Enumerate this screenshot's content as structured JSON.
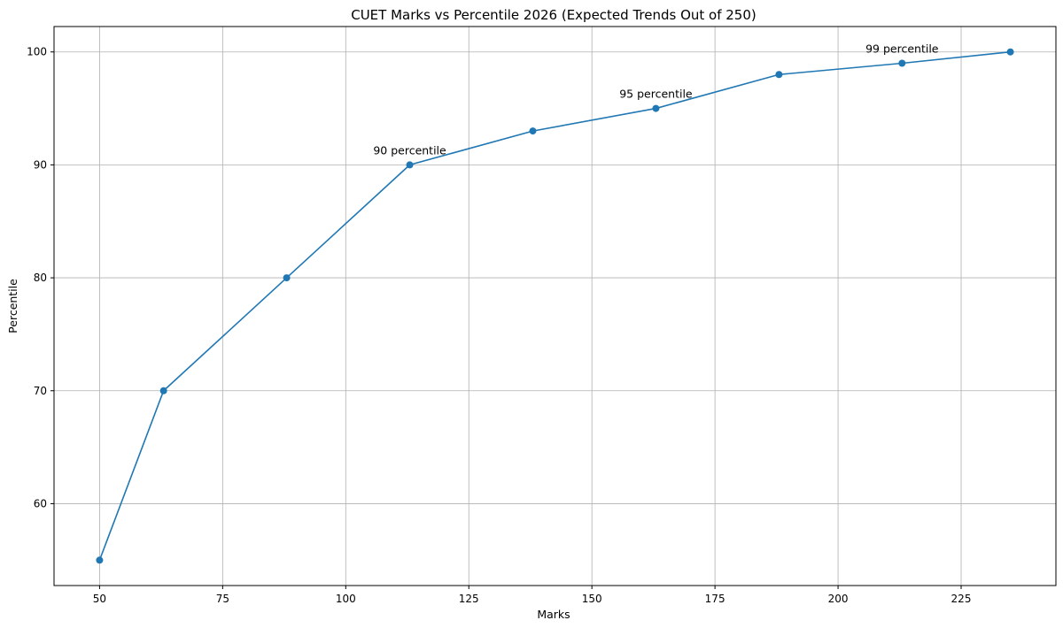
{
  "chart_data": {
    "type": "line",
    "title": "CUET Marks vs Percentile 2026 (Expected Trends Out of 250)",
    "xlabel": "Marks",
    "ylabel": "Percentile",
    "xlim": [
      40.75,
      244.25
    ],
    "ylim": [
      52.75,
      102.25
    ],
    "xticks": [
      50,
      75,
      100,
      125,
      150,
      175,
      200,
      225
    ],
    "yticks": [
      60,
      70,
      80,
      90,
      100
    ],
    "grid": true,
    "series": [
      {
        "color": "#1f77b4",
        "marker": "circle",
        "points": [
          {
            "x": 50,
            "y": 55
          },
          {
            "x": 63,
            "y": 70
          },
          {
            "x": 88,
            "y": 80
          },
          {
            "x": 113,
            "y": 90
          },
          {
            "x": 138,
            "y": 93
          },
          {
            "x": 163,
            "y": 95
          },
          {
            "x": 188,
            "y": 98
          },
          {
            "x": 213,
            "y": 99
          },
          {
            "x": 235,
            "y": 100
          }
        ]
      }
    ],
    "annotations": [
      {
        "text": "90 percentile",
        "x": 113,
        "y": 90
      },
      {
        "text": "95 percentile",
        "x": 163,
        "y": 95
      },
      {
        "text": "99 percentile",
        "x": 213,
        "y": 99
      }
    ]
  }
}
